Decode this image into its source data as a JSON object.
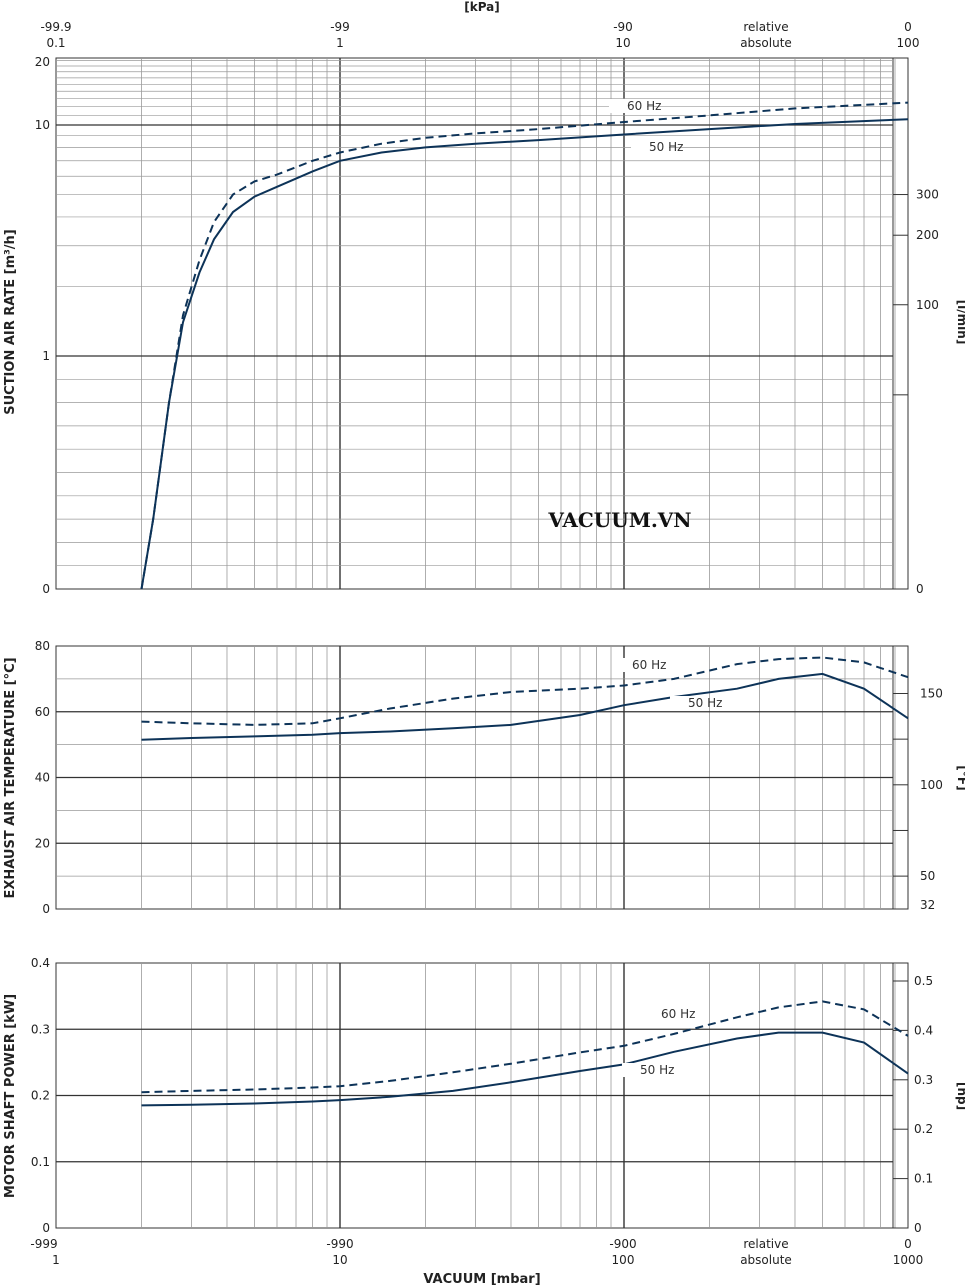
{
  "top_axis": {
    "unit": "[kPa]",
    "relative_labels": [
      "-99.9",
      "-99",
      "-90",
      "relative",
      "0"
    ],
    "absolute_labels": [
      "0.1",
      "1",
      "10",
      "absolute",
      "100"
    ]
  },
  "bottom_axis": {
    "title": "VACUUM  [mbar]",
    "relative_labels": [
      "-999",
      "-990",
      "-900",
      "relative",
      "0"
    ],
    "absolute_labels": [
      "1",
      "10",
      "100",
      "absolute",
      "1000"
    ]
  },
  "watermark": "VACUUM.VN",
  "colors": {
    "series": "#0d3358",
    "grid_major": "#333333",
    "grid_minor": "#9a9a9a"
  },
  "chart_data": [
    {
      "id": "suction",
      "type": "line",
      "xscale": "log",
      "xlim": [
        1,
        1000
      ],
      "yscale": "mixed-log",
      "ylabel": "SUCTION AIR RATE  [m³/h]",
      "ylabel_right": "[l/min]",
      "y_ticks": [
        "0",
        "1",
        "10",
        "20"
      ],
      "y_right_ticks": [
        "0",
        "100",
        "200",
        "300"
      ],
      "series": [
        {
          "name": "60 Hz",
          "style": "dashed",
          "x": [
            2,
            2.2,
            2.5,
            2.8,
            3.2,
            3.6,
            4.2,
            5,
            6,
            8,
            10,
            14,
            20,
            30,
            50,
            100,
            200,
            400,
            1000
          ],
          "y": [
            0,
            0.3,
            0.8,
            1.5,
            2.6,
            3.8,
            5.0,
            5.7,
            6.1,
            7.0,
            7.6,
            8.3,
            8.8,
            9.2,
            9.6,
            10.3,
            11.0,
            11.8,
            12.5
          ]
        },
        {
          "name": "50 Hz",
          "style": "solid",
          "x": [
            2,
            2.2,
            2.5,
            2.8,
            3.2,
            3.6,
            4.2,
            5,
            6,
            8,
            10,
            14,
            20,
            30,
            50,
            100,
            200,
            400,
            1000
          ],
          "y": [
            0,
            0.3,
            0.8,
            1.4,
            2.3,
            3.2,
            4.2,
            4.9,
            5.4,
            6.3,
            7.0,
            7.6,
            8.0,
            8.3,
            8.6,
            9.1,
            9.6,
            10.1,
            10.6
          ]
        }
      ]
    },
    {
      "id": "temperature",
      "type": "line",
      "xscale": "log",
      "xlim": [
        1,
        1000
      ],
      "ylim": [
        0,
        80
      ],
      "ylabel": "EXHAUST AIR TEMPERATURE  [°C]",
      "ylabel_right": "[°F]",
      "y_ticks": [
        "0",
        "20",
        "40",
        "60",
        "80"
      ],
      "y_right_ticks": [
        "32",
        "50",
        "100",
        "150"
      ],
      "series": [
        {
          "name": "60 Hz",
          "style": "dashed",
          "x": [
            2,
            3,
            5,
            8,
            10,
            15,
            25,
            40,
            70,
            100,
            150,
            250,
            350,
            500,
            700,
            1000
          ],
          "y": [
            57,
            56.5,
            56,
            56.5,
            58,
            61,
            64,
            66,
            67,
            68,
            70,
            74.5,
            76,
            76.5,
            75,
            70.5
          ]
        },
        {
          "name": "50 Hz",
          "style": "solid",
          "x": [
            2,
            3,
            5,
            8,
            10,
            15,
            25,
            40,
            70,
            100,
            150,
            250,
            350,
            500,
            700,
            1000
          ],
          "y": [
            51.5,
            52,
            52.5,
            53,
            53.5,
            54,
            55,
            56,
            59,
            62,
            64.5,
            67,
            70,
            71.5,
            67,
            58
          ]
        }
      ]
    },
    {
      "id": "power",
      "type": "line",
      "xscale": "log",
      "xlim": [
        1,
        1000
      ],
      "ylim": [
        0,
        0.4
      ],
      "ylabel": "MOTOR SHAFT POWER  [kW]",
      "ylabel_right": "[hp]",
      "y_ticks": [
        "0",
        "0.1",
        "0.2",
        "0.3",
        "0.4"
      ],
      "y_right_ticks": [
        "0",
        "0.1",
        "0.2",
        "0.3",
        "0.4",
        "0.5"
      ],
      "series": [
        {
          "name": "60 Hz",
          "style": "dashed",
          "x": [
            2,
            3,
            5,
            8,
            10,
            15,
            25,
            40,
            70,
            100,
            150,
            250,
            350,
            500,
            700,
            1000
          ],
          "y": [
            0.205,
            0.207,
            0.209,
            0.212,
            0.214,
            0.222,
            0.235,
            0.248,
            0.265,
            0.275,
            0.293,
            0.318,
            0.333,
            0.342,
            0.33,
            0.29
          ]
        },
        {
          "name": "50 Hz",
          "style": "solid",
          "x": [
            2,
            3,
            5,
            8,
            10,
            15,
            25,
            40,
            70,
            100,
            150,
            250,
            350,
            500,
            700,
            1000
          ],
          "y": [
            0.185,
            0.186,
            0.188,
            0.191,
            0.193,
            0.198,
            0.207,
            0.22,
            0.237,
            0.247,
            0.266,
            0.286,
            0.295,
            0.295,
            0.28,
            0.233
          ]
        }
      ]
    }
  ]
}
